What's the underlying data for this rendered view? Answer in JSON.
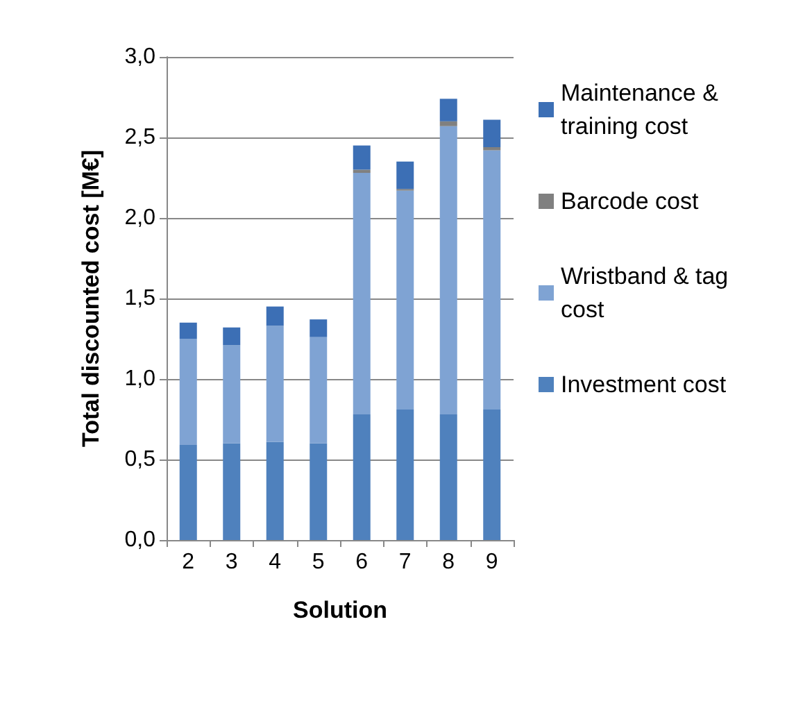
{
  "chart_data": {
    "type": "bar",
    "stacked": true,
    "xlabel": "Solution",
    "ylabel": "Total discounted cost [M€]",
    "categories": [
      "2",
      "3",
      "4",
      "5",
      "6",
      "7",
      "8",
      "9"
    ],
    "series": [
      {
        "name": "Investment cost",
        "color": "#4f81bd",
        "values": [
          0.59,
          0.6,
          0.61,
          0.6,
          0.78,
          0.81,
          0.78,
          0.81
        ]
      },
      {
        "name": "Wristband & tag cost",
        "color": "#7fa3d3",
        "values": [
          0.66,
          0.61,
          0.72,
          0.66,
          1.5,
          1.36,
          1.79,
          1.61
        ]
      },
      {
        "name": "Barcode cost",
        "color": "#808080",
        "values": [
          0,
          0,
          0,
          0,
          0.02,
          0.01,
          0.03,
          0.02
        ]
      },
      {
        "name": "Maintenance & training cost",
        "color": "#3c6fb5",
        "values": [
          0.1,
          0.11,
          0.12,
          0.11,
          0.15,
          0.17,
          0.14,
          0.17
        ]
      }
    ],
    "ylim": [
      0,
      3
    ],
    "yticks": [
      {
        "value": 0,
        "label": "0,0"
      },
      {
        "value": 0.5,
        "label": "0,5"
      },
      {
        "value": 1,
        "label": "1,0"
      },
      {
        "value": 1.5,
        "label": "1,5"
      },
      {
        "value": 2,
        "label": "2,0"
      },
      {
        "value": 2.5,
        "label": "2,5"
      },
      {
        "value": 3,
        "label": "3,0"
      }
    ],
    "grid": "y",
    "legend": "right"
  }
}
